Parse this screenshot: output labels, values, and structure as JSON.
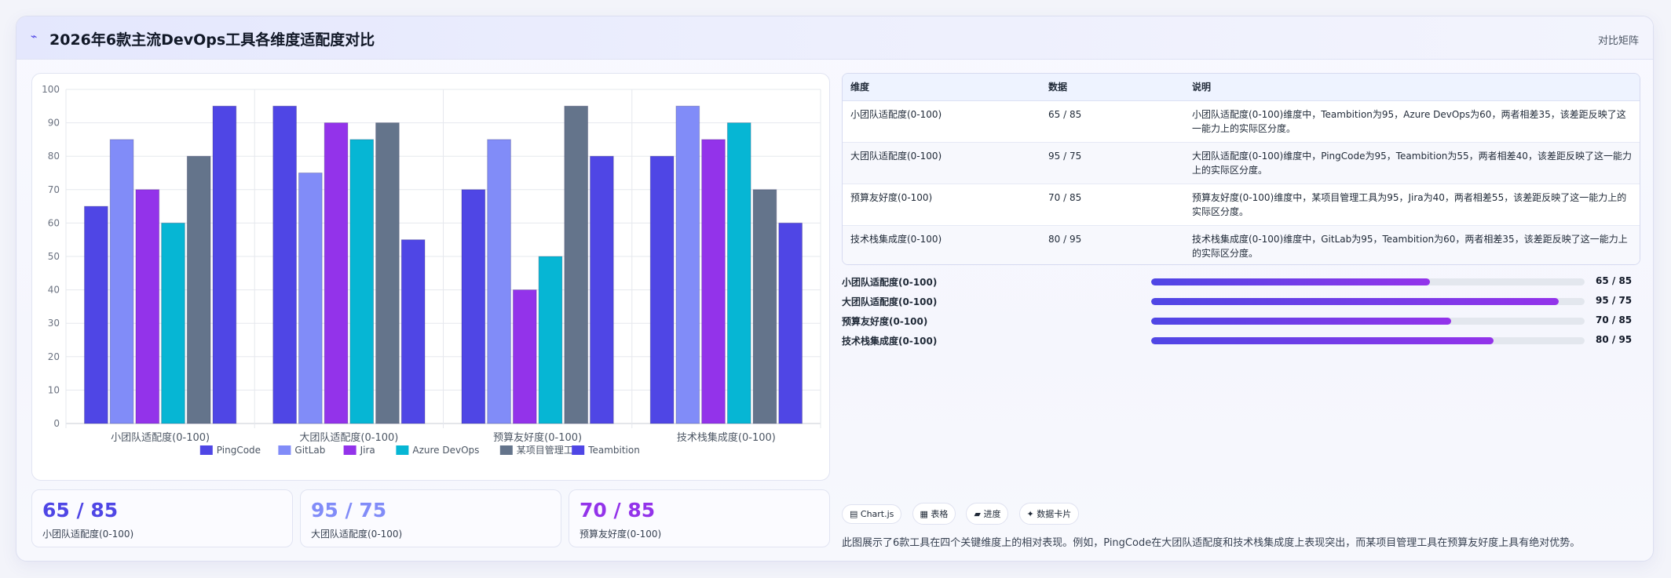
{
  "header": {
    "logo_glyph": "⌁",
    "title": "2026年6款主流DevOps工具各维度适配度对比",
    "tag": "对比矩阵"
  },
  "chart_data": {
    "type": "bar",
    "title": "",
    "xlabel": "",
    "ylabel": "",
    "ylim": [
      0,
      100
    ],
    "yticks": [
      "0",
      "10",
      "20",
      "30",
      "40",
      "50",
      "60",
      "70",
      "80",
      "90",
      "100"
    ],
    "grid": true,
    "legend_position": "bottom",
    "categories": [
      "小团队适配度(0-100)",
      "大团队适配度(0-100)",
      "预算友好度(0-100)",
      "技术栈集成度(0-100)"
    ],
    "series": [
      {
        "name": "PingCode",
        "color": "#4f46e5",
        "values": [
          65,
          95,
          70,
          80
        ]
      },
      {
        "name": "GitLab",
        "color": "#818cf8",
        "values": [
          85,
          75,
          85,
          95
        ]
      },
      {
        "name": "Jira",
        "color": "#9333ea",
        "values": [
          70,
          90,
          40,
          85
        ]
      },
      {
        "name": "Azure DevOps",
        "color": "#06b6d4",
        "values": [
          60,
          85,
          50,
          90
        ]
      },
      {
        "name": "某项目管理工具",
        "color": "#64748b",
        "values": [
          80,
          90,
          95,
          70
        ]
      },
      {
        "name": "Teambition",
        "color": "#4f46e5",
        "values": [
          95,
          55,
          80,
          60
        ]
      }
    ]
  },
  "kpis": [
    {
      "value": "65 / 85",
      "label": "小团队适配度(0-100)",
      "color": "#4f46e5"
    },
    {
      "value": "95 / 75",
      "label": "大团队适配度(0-100)",
      "color": "#818cf8"
    },
    {
      "value": "70 / 85",
      "label": "预算友好度(0-100)",
      "color": "#9333ea"
    }
  ],
  "table": {
    "headers": [
      "维度",
      "数据",
      "说明"
    ],
    "rows": [
      {
        "dim": "小团队适配度(0-100)",
        "data": "65 / 85",
        "desc": "小团队适配度(0-100)维度中，Teambition为95，Azure DevOps为60，两者相差35，该差距反映了这一能力上的实际区分度。"
      },
      {
        "dim": "大团队适配度(0-100)",
        "data": "95 / 75",
        "desc": "大团队适配度(0-100)维度中，PingCode为95，Teambition为55，两者相差40，该差距反映了这一能力上的实际区分度。"
      },
      {
        "dim": "预算友好度(0-100)",
        "data": "70 / 85",
        "desc": "预算友好度(0-100)维度中，某项目管理工具为95，Jira为40，两者相差55，该差距反映了这一能力上的实际区分度。"
      },
      {
        "dim": "技术栈集成度(0-100)",
        "data": "80 / 95",
        "desc": "技术栈集成度(0-100)维度中，GitLab为95，Teambition为60，两者相差35，该差距反映了这一能力上的实际区分度。"
      }
    ]
  },
  "progress": [
    {
      "label": "小团队适配度(0-100)",
      "value": "65 / 85",
      "fraction": 0.6425
    },
    {
      "label": "大团队适配度(0-100)",
      "value": "95 / 75",
      "fraction": 0.94
    },
    {
      "label": "预算友好度(0-100)",
      "value": "70 / 85",
      "fraction": 0.6925
    },
    {
      "label": "技术栈集成度(0-100)",
      "value": "80 / 95",
      "fraction": 0.79
    }
  ],
  "chips": [
    "▤ Chart.js",
    "▦ 表格",
    "▰ 进度",
    "✦ 数据卡片"
  ],
  "footnote": "此图展示了6款工具在四个关键维度上的相对表现。例如，PingCode在大团队适配度和技术栈集成度上表现突出，而某项目管理工具在预算友好度上具有绝对优势。"
}
